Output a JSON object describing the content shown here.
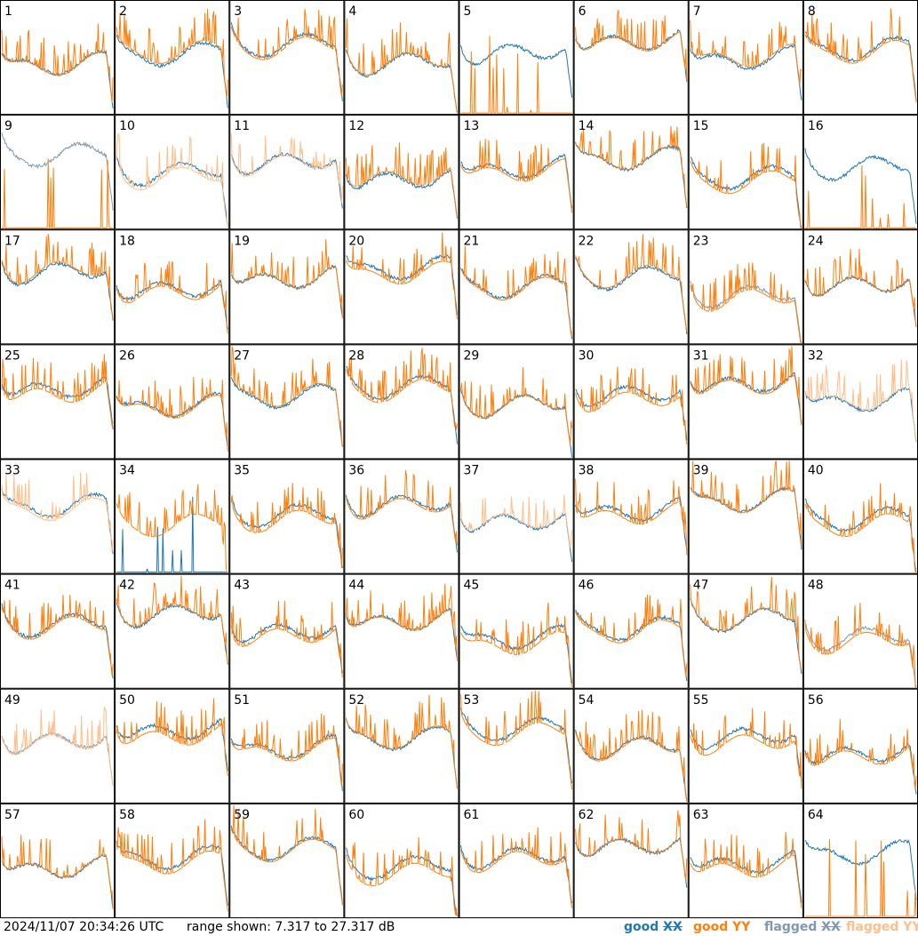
{
  "chart_data": {
    "type": "line",
    "panels": [
      "1",
      "2",
      "3",
      "4",
      "5",
      "6",
      "7",
      "8",
      "9",
      "10",
      "11",
      "12",
      "13",
      "14",
      "15",
      "16",
      "17",
      "18",
      "19",
      "20",
      "21",
      "22",
      "23",
      "24",
      "25",
      "26",
      "27",
      "28",
      "29",
      "30",
      "31",
      "32",
      "33",
      "34",
      "35",
      "36",
      "37",
      "38",
      "39",
      "40",
      "41",
      "42",
      "43",
      "44",
      "45",
      "46",
      "47",
      "48",
      "49",
      "50",
      "51",
      "52",
      "53",
      "54",
      "55",
      "56",
      "57",
      "58",
      "59",
      "60",
      "61",
      "62",
      "63",
      "64"
    ],
    "series": [
      {
        "name": "good XX",
        "color": "#1f77b4"
      },
      {
        "name": "good YY",
        "color": "#ff7f0e"
      },
      {
        "name": "flagged XX",
        "color": "#7f98b3"
      },
      {
        "name": "flagged YY",
        "color": "#ffbf8a"
      }
    ],
    "ylim": [
      7.317,
      27.317
    ],
    "flags": {
      "xx_flagged": [
        "9",
        "23",
        "48",
        "49"
      ],
      "yy_flagged": [
        "10",
        "11",
        "32",
        "33",
        "37",
        "49"
      ],
      "xx_dropout": [
        "34"
      ],
      "yy_dropout": [
        "5",
        "9",
        "16",
        "64"
      ]
    }
  },
  "footer": {
    "timestamp": "2024/11/07 20:34:26 UTC",
    "range": "range shown: 7.317 to 27.317 dB",
    "legend": {
      "good_prefix": "good ",
      "xx": "XX",
      "yy": "YY",
      "flagged_prefix": "flagged "
    }
  }
}
